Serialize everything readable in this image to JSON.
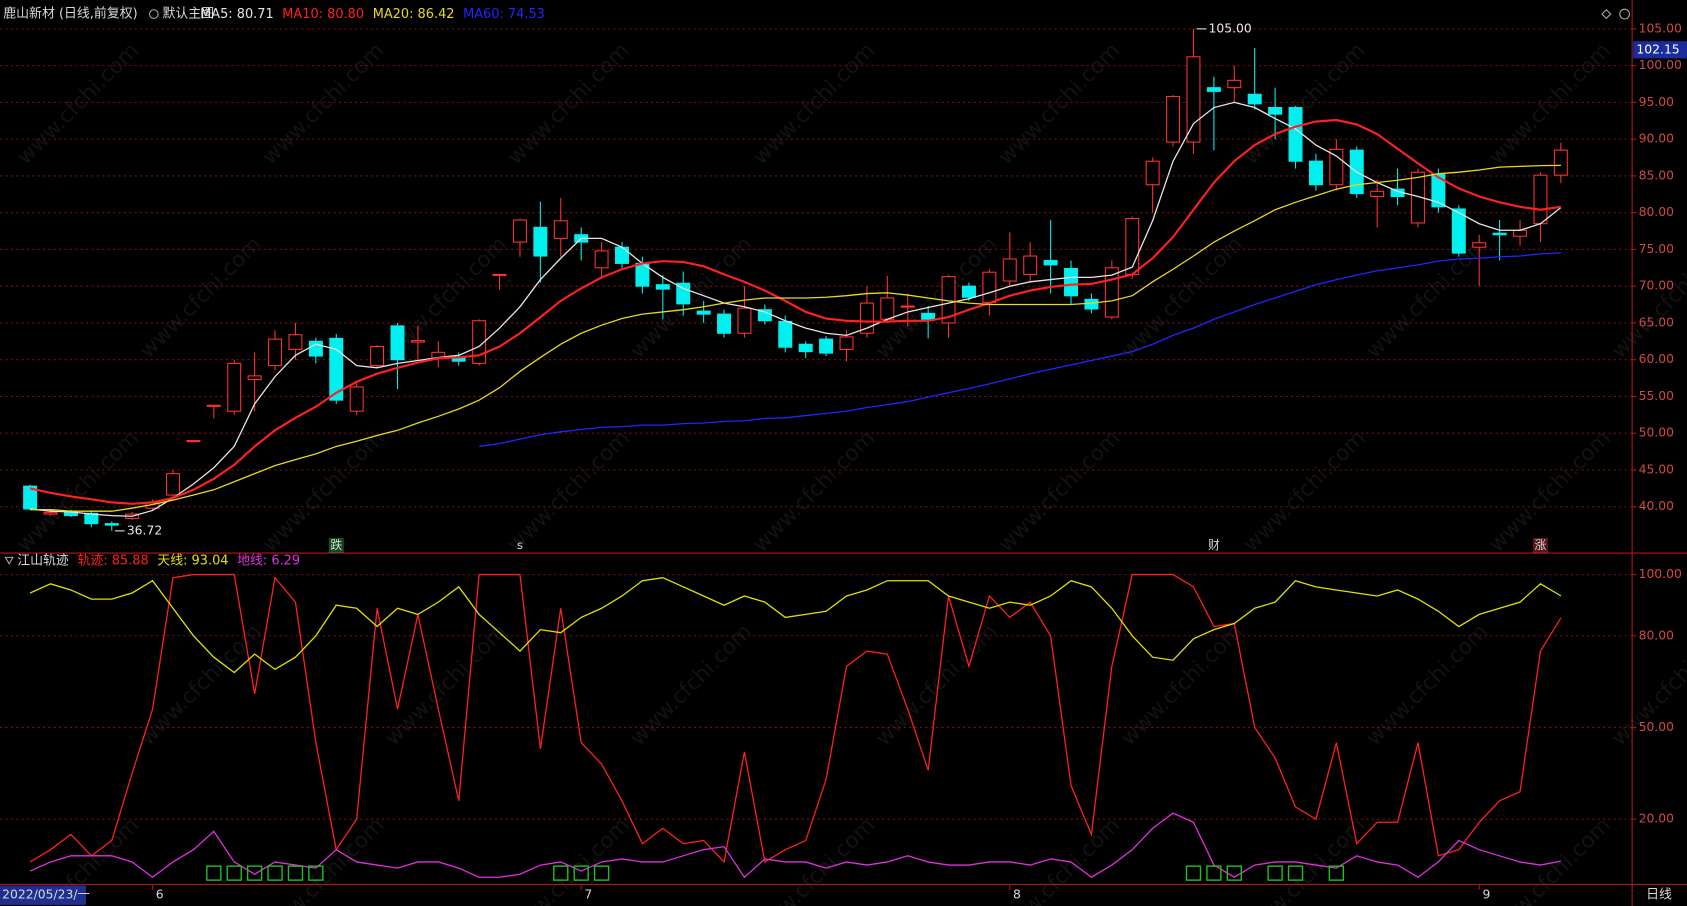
{
  "header": {
    "title": "鹿山新材 (日线,前复权)",
    "main_label": "默认主图"
  },
  "watermark": "www.cfchi.com",
  "footer": {
    "period": "日线"
  },
  "chart_data": [
    {
      "type": "candlestick",
      "categories": [
        "2022/05/23/一",
        null,
        null,
        null,
        null,
        null,
        "6",
        null,
        null,
        null,
        null,
        null,
        null,
        null,
        null,
        null,
        null,
        null,
        null,
        null,
        null,
        null,
        null,
        null,
        null,
        null,
        null,
        "7",
        null,
        null,
        null,
        null,
        null,
        null,
        null,
        null,
        null,
        null,
        null,
        null,
        null,
        null,
        null,
        null,
        null,
        null,
        null,
        null,
        "8",
        null,
        null,
        null,
        null,
        null,
        null,
        null,
        null,
        null,
        null,
        null,
        null,
        null,
        null,
        null,
        null,
        null,
        null,
        null,
        null,
        null,
        null,
        "9",
        null,
        null,
        null,
        null
      ],
      "open": [
        42.8,
        39,
        39.3,
        39.1,
        37.7,
        38.4,
        39.8,
        41.6,
        49,
        53.8,
        53,
        57.3,
        59.2,
        61.4,
        62.5,
        62.9,
        53,
        59.2,
        64.6,
        62.4,
        60.2,
        60.3,
        59.5,
        71.6,
        76,
        78,
        76.5,
        77,
        72.5,
        75.3,
        73.1,
        70.2,
        70.4,
        66.6,
        66.2,
        63.6,
        66.8,
        65.2,
        62.1,
        62.8,
        61.4,
        63.6,
        65.5,
        67.2,
        66.3,
        65,
        70,
        67.8,
        70.7,
        71.6,
        73.5,
        72.4,
        68.2,
        65.8,
        71.6,
        83.8,
        89.6,
        89.6,
        97,
        97,
        96.1,
        94.3,
        94.3,
        87,
        83.8,
        88.5,
        82.2,
        83.2,
        78.6,
        85.2,
        80.5,
        75.3,
        77.2,
        76.8,
        78.5,
        85.1
      ],
      "high": [
        43,
        39.5,
        39.6,
        39.5,
        38,
        39.3,
        41,
        45,
        49,
        53.8,
        60,
        61,
        64,
        65,
        63,
        63.5,
        57,
        62,
        65,
        64.6,
        62.5,
        61,
        65.5,
        71.6,
        79.2,
        81.5,
        82,
        78,
        76,
        76,
        74,
        71.5,
        72,
        68,
        66.8,
        70,
        67.5,
        66,
        62.5,
        63.2,
        64,
        70,
        71.4,
        69,
        67.3,
        71.5,
        70.5,
        72.3,
        77.3,
        76,
        79,
        73.5,
        69,
        73.5,
        79.5,
        87.5,
        96,
        105,
        98.5,
        100,
        102.4,
        97,
        94.5,
        88,
        90,
        89,
        84.5,
        86,
        86,
        86,
        81,
        77,
        79,
        79,
        85.5,
        89.5
      ],
      "low": [
        39.5,
        38.8,
        38.6,
        37.2,
        36.72,
        38.2,
        39.5,
        41,
        49,
        52,
        52.5,
        53,
        58.6,
        60,
        59.5,
        54,
        52.5,
        59,
        56,
        60,
        59,
        59.2,
        59.2,
        69.5,
        74,
        70.5,
        74,
        73.5,
        71,
        72.5,
        69,
        65.5,
        66,
        65,
        63,
        63,
        64.8,
        61,
        60.2,
        60.5,
        59.8,
        63,
        65,
        64.5,
        62.9,
        63,
        68,
        66,
        70,
        70.5,
        69,
        67.5,
        66.3,
        65.5,
        71,
        80,
        89,
        88,
        88.5,
        95,
        94,
        90,
        86,
        83,
        83,
        82,
        78,
        81,
        78,
        80,
        74,
        70,
        73.5,
        75.5,
        76,
        84
      ],
      "close": [
        39.7,
        39.2,
        38.8,
        37.7,
        37.5,
        39,
        40.5,
        44.5,
        49,
        53.8,
        59.5,
        57.8,
        62.8,
        63.4,
        60.5,
        54.5,
        56.3,
        61.8,
        60,
        62.6,
        61,
        59.8,
        65.3,
        71.6,
        79,
        74.1,
        78.9,
        76,
        74.8,
        73.1,
        70,
        69.6,
        67.6,
        66.2,
        63.6,
        67,
        65.3,
        61.7,
        61.1,
        60.9,
        63.1,
        67.7,
        68.4,
        67.3,
        65.5,
        71.3,
        68.5,
        71.9,
        73.7,
        74.1,
        72.9,
        68.7,
        66.9,
        72.5,
        79.2,
        87,
        95.8,
        101.2,
        96.5,
        98,
        94.8,
        93.4,
        87,
        83.8,
        88.6,
        82.6,
        82.9,
        82.2,
        85.5,
        80.8,
        74.5,
        75.9,
        77,
        77.6,
        85.1,
        88.5
      ],
      "up_color": "#ff3030",
      "down_color": "#00f0f0",
      "series": [
        {
          "name": "MA5: 80.71",
          "color": "#e6e6e6",
          "values": [
            39.7,
            39.4,
            39.3,
            39.0,
            38.8,
            38.7,
            39.5,
            41.2,
            43.1,
            45.3,
            48.2,
            54.0,
            57.7,
            60.6,
            62.1,
            61.4,
            59.2,
            58.9,
            59.5,
            59.9,
            60.3,
            60.6,
            61.8,
            64.3,
            67.2,
            70.9,
            73.8,
            76.5,
            76.5,
            75.3,
            73.1,
            71.2,
            69.7,
            68.7,
            67.7,
            67.2,
            66.5,
            65.3,
            64.3,
            63.6,
            63.3,
            64.3,
            65.5,
            66.5,
            67.1,
            67.7,
            68.3,
            69.1,
            70.0,
            70.6,
            70.9,
            71.2,
            71.2,
            71.5,
            72.6,
            78.9,
            87.0,
            92.1,
            94.3,
            95.0,
            94.3,
            92.8,
            91.4,
            89.2,
            87.7,
            85.5,
            84.1,
            82.9,
            82.2,
            81.4,
            80.0,
            78.5,
            77.6,
            77.6,
            78.5,
            80.71
          ]
        },
        {
          "name": "MA10: 80.80",
          "color": "#ff2020",
          "values": [
            42.5,
            41.9,
            41.4,
            41.0,
            40.6,
            40.4,
            40.6,
            41.2,
            42.3,
            43.8,
            45.7,
            48.2,
            50.4,
            52.1,
            53.6,
            55.5,
            57.0,
            58.1,
            58.9,
            59.6,
            60.2,
            60.3,
            60.6,
            61.8,
            63.6,
            65.8,
            68.0,
            69.7,
            71.2,
            72.3,
            73.1,
            73.4,
            73.3,
            72.7,
            71.6,
            70.6,
            69.4,
            68.0,
            66.5,
            65.6,
            65.3,
            65.2,
            65.2,
            65.3,
            65.3,
            65.8,
            66.8,
            67.7,
            68.7,
            69.4,
            69.9,
            70.2,
            70.3,
            70.9,
            71.6,
            73.8,
            76.7,
            80.4,
            84.1,
            87.0,
            89.2,
            90.7,
            91.7,
            92.4,
            92.6,
            92.0,
            90.7,
            88.7,
            86.7,
            84.8,
            83.3,
            82.2,
            81.4,
            80.8,
            80.4,
            80.8
          ]
        },
        {
          "name": "MA20: 86.42",
          "color": "#e8d820",
          "values": [
            39.6,
            39.6,
            39.4,
            39.4,
            39.4,
            39.8,
            40.3,
            40.9,
            41.6,
            42.3,
            43.4,
            44.5,
            45.6,
            46.4,
            47.2,
            48.2,
            48.9,
            49.7,
            50.4,
            51.4,
            52.3,
            53.3,
            54.5,
            56.2,
            58.4,
            60.3,
            62.1,
            63.6,
            64.7,
            65.6,
            66.2,
            66.5,
            66.8,
            67.2,
            67.7,
            68.1,
            68.4,
            68.4,
            68.4,
            68.5,
            68.7,
            69.0,
            69.1,
            68.8,
            68.4,
            68.0,
            67.7,
            67.5,
            67.5,
            67.5,
            67.5,
            67.5,
            67.7,
            68.0,
            68.7,
            70.6,
            72.3,
            74.1,
            76.0,
            77.5,
            78.9,
            80.4,
            81.4,
            82.3,
            83.2,
            83.8,
            84.1,
            84.4,
            84.8,
            85.3,
            85.5,
            85.8,
            86.2,
            86.3,
            86.4,
            86.42
          ]
        },
        {
          "name": "MA60: 74.53",
          "color": "#2424ff",
          "values": [
            null,
            null,
            null,
            null,
            null,
            null,
            null,
            null,
            null,
            null,
            null,
            null,
            null,
            null,
            null,
            null,
            null,
            null,
            null,
            null,
            null,
            null,
            48.2,
            48.6,
            49.2,
            49.8,
            50.2,
            50.5,
            50.8,
            50.9,
            51.1,
            51.1,
            51.3,
            51.4,
            51.6,
            51.7,
            52.0,
            52.1,
            52.4,
            52.7,
            53.0,
            53.5,
            53.9,
            54.3,
            54.9,
            55.5,
            56.1,
            56.7,
            57.4,
            58.1,
            58.7,
            59.3,
            59.9,
            60.5,
            61.1,
            62.1,
            63.3,
            64.3,
            65.5,
            66.5,
            67.5,
            68.4,
            69.3,
            70.2,
            70.9,
            71.5,
            72.1,
            72.5,
            72.9,
            73.4,
            73.7,
            73.8,
            74.0,
            74.1,
            74.4,
            74.53
          ]
        }
      ],
      "ylim": [
        33.7,
        105.7
      ],
      "yticks": [
        {
          "value": 40,
          "label": "40.00"
        },
        {
          "value": 45,
          "label": "45.00"
        },
        {
          "value": 50,
          "label": "50.00"
        },
        {
          "value": 55,
          "label": "55.00"
        },
        {
          "value": 60,
          "label": "60.00"
        },
        {
          "value": 65,
          "label": "65.00"
        },
        {
          "value": 70,
          "label": "70.00"
        },
        {
          "value": 75,
          "label": "75.00"
        },
        {
          "value": 80,
          "label": "80.00"
        },
        {
          "value": 85,
          "label": "85.00"
        },
        {
          "value": 90,
          "label": "90.00"
        },
        {
          "value": 95,
          "label": "95.00"
        },
        {
          "value": 100,
          "label": "100.00"
        },
        {
          "value": 105,
          "label": "105.00"
        }
      ],
      "grid": true,
      "annotations": [
        {
          "index": 57,
          "value": 105,
          "label": "105.00"
        },
        {
          "index": 4,
          "value": 36.72,
          "label": "36.72"
        }
      ],
      "price_tag": {
        "value": 102.15,
        "label": "102.15",
        "color": "#1a2c9c"
      },
      "events": [
        {
          "index": 15,
          "label": "跌",
          "color": "#30d060",
          "boxed": true
        },
        {
          "index": 24,
          "label": "s",
          "color": "#ff4040",
          "boxed": false
        },
        {
          "index": 58,
          "label": "财",
          "color": "#4a8cff",
          "boxed": false
        },
        {
          "index": 74,
          "label": "涨",
          "color": "#ff4040",
          "boxed": true
        }
      ]
    },
    {
      "type": "line",
      "title": "江山轨迹",
      "series": [
        {
          "name": "轨迹: 85.88",
          "color": "#ff2020",
          "values": [
            6,
            10,
            15,
            8,
            13,
            35,
            56,
            99,
            100,
            100,
            100,
            61,
            99,
            91,
            45,
            10,
            20,
            89,
            56,
            87,
            56,
            26,
            100,
            100,
            100,
            43,
            89,
            45,
            38,
            26,
            12,
            17,
            12,
            13,
            6,
            42,
            6,
            10,
            13,
            33,
            70,
            75,
            74,
            56,
            36,
            93,
            70,
            93,
            86,
            91,
            80,
            31,
            15,
            70,
            100,
            100,
            100,
            96,
            83,
            84,
            50,
            40,
            24,
            20,
            45,
            12,
            19,
            19,
            45,
            8,
            10,
            19,
            26,
            29,
            75,
            85.88
          ]
        },
        {
          "name": "天线: 93.04",
          "color": "#e0e000",
          "values": [
            94,
            97,
            95,
            92,
            92,
            94,
            98,
            89,
            80,
            73,
            68,
            74,
            69,
            73,
            80,
            90,
            89,
            83,
            89,
            87,
            91,
            96,
            87,
            81,
            75,
            82,
            81,
            86,
            89,
            93,
            98,
            99,
            96,
            93,
            90,
            93,
            91,
            86,
            87,
            88,
            93,
            95,
            98,
            98,
            98,
            93,
            91,
            89,
            91,
            90,
            93,
            98,
            96,
            89,
            80,
            73,
            72,
            79,
            82,
            84,
            89,
            91,
            98,
            96,
            95,
            94,
            93,
            95,
            92,
            88,
            83,
            87,
            89,
            91,
            97,
            93.04
          ]
        },
        {
          "name": "地线: 6.29",
          "color": "#e030e0",
          "values": [
            3,
            6,
            8,
            8,
            8,
            6,
            1,
            6,
            10,
            16,
            6,
            2,
            6,
            5,
            4,
            10,
            6,
            5,
            4,
            6,
            6,
            4,
            1,
            1,
            2,
            5,
            6,
            3,
            6,
            7,
            6,
            6,
            8,
            10,
            11,
            1,
            7,
            6,
            6,
            4,
            6,
            5,
            6,
            8,
            6,
            5,
            5,
            6,
            6,
            5,
            7,
            6,
            1,
            5,
            10,
            17,
            22,
            19,
            5,
            1,
            5,
            6,
            6,
            5,
            4,
            8,
            6,
            5,
            1,
            6,
            13,
            10,
            8,
            6,
            5,
            6.29
          ]
        }
      ],
      "ylim": [
        -1,
        106
      ],
      "yticks": [
        {
          "value": 20,
          "label": "20.00"
        },
        {
          "value": 50,
          "label": "50.00"
        },
        {
          "value": 80,
          "label": "80.00"
        },
        {
          "value": 100,
          "label": "100.00"
        }
      ],
      "grid": true,
      "signals": [
        9,
        10,
        11,
        12,
        13,
        14,
        26,
        27,
        28,
        57,
        58,
        59,
        61,
        62,
        64
      ],
      "signal_color": "#20c020"
    }
  ]
}
